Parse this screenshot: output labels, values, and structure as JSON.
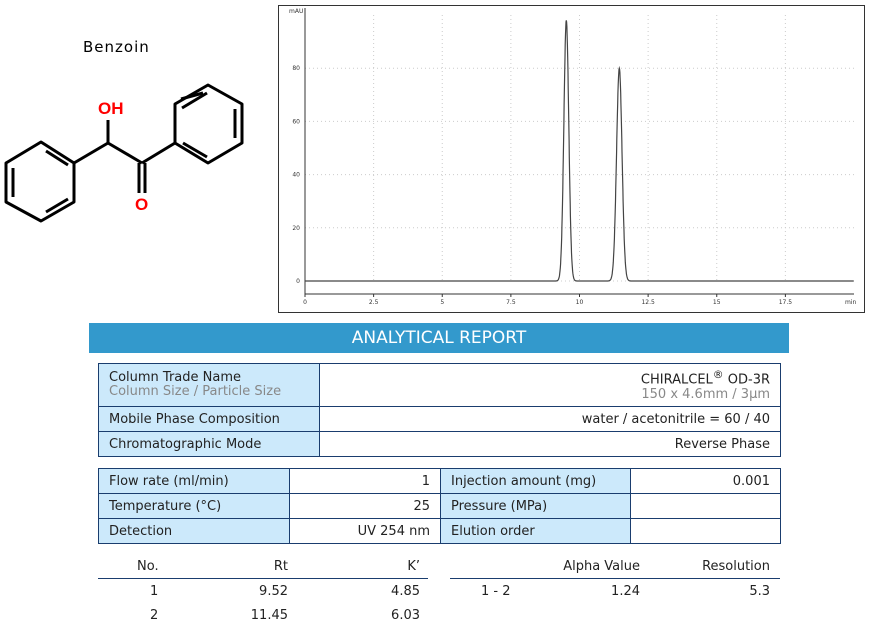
{
  "compound": {
    "name": "Benzoin",
    "oh_label": "OH",
    "o_label": "O"
  },
  "chart_data": {
    "type": "line",
    "title": "",
    "xlabel": "min",
    "ylabel": "mAU",
    "xlim": [
      0,
      20
    ],
    "ylim": [
      -5,
      100
    ],
    "xticks": [
      0,
      2.5,
      5,
      7.5,
      10,
      12.5,
      15,
      17.5
    ],
    "xtick_labels": [
      "0",
      "2.5",
      "5",
      "7.5",
      "10",
      "12.5",
      "15",
      "17.5"
    ],
    "yticks": [
      0,
      20,
      40,
      60,
      80
    ],
    "ytick_labels": [
      "0",
      "20",
      "40",
      "60",
      "80"
    ],
    "grid": true,
    "peaks": [
      {
        "rt": 9.52,
        "height": 98,
        "width_sigma": 0.09
      },
      {
        "rt": 11.45,
        "height": 80,
        "width_sigma": 0.1
      }
    ],
    "baseline": 0,
    "color": "#444444"
  },
  "report": {
    "banner": "ANALYTICAL REPORT",
    "column": {
      "label": "Column Trade Name",
      "sublabel": "Column Size / Particle Size",
      "value": "CHIRALCEL",
      "reg": "®",
      "value2": " OD-3R",
      "subvalue": "150 x 4.6mm / 3µm"
    },
    "mobile_phase": {
      "label": "Mobile Phase Composition",
      "value": "water / acetonitrile = 60 / 40"
    },
    "mode": {
      "label": "Chromatographic Mode",
      "value": "Reverse Phase"
    },
    "conditions": [
      {
        "label": "Flow rate (ml/min)",
        "value": "1",
        "label2": "Injection amount (mg)",
        "value2": "0.001"
      },
      {
        "label": "Temperature (°C)",
        "value": "25",
        "label2": "Pressure (MPa)",
        "value2": ""
      },
      {
        "label": "Detection",
        "value": "UV 254 nm",
        "label2": "Elution order",
        "value2": ""
      }
    ],
    "results": {
      "headers": [
        "No.",
        "Rt",
        "K’"
      ],
      "rows": [
        [
          "1",
          "9.52",
          "4.85"
        ],
        [
          "2",
          "11.45",
          "6.03"
        ]
      ],
      "headers2": [
        "Alpha Value",
        "Resolution"
      ],
      "rows2": [
        [
          "1 - 2",
          "1.24",
          "5.3"
        ]
      ]
    }
  }
}
